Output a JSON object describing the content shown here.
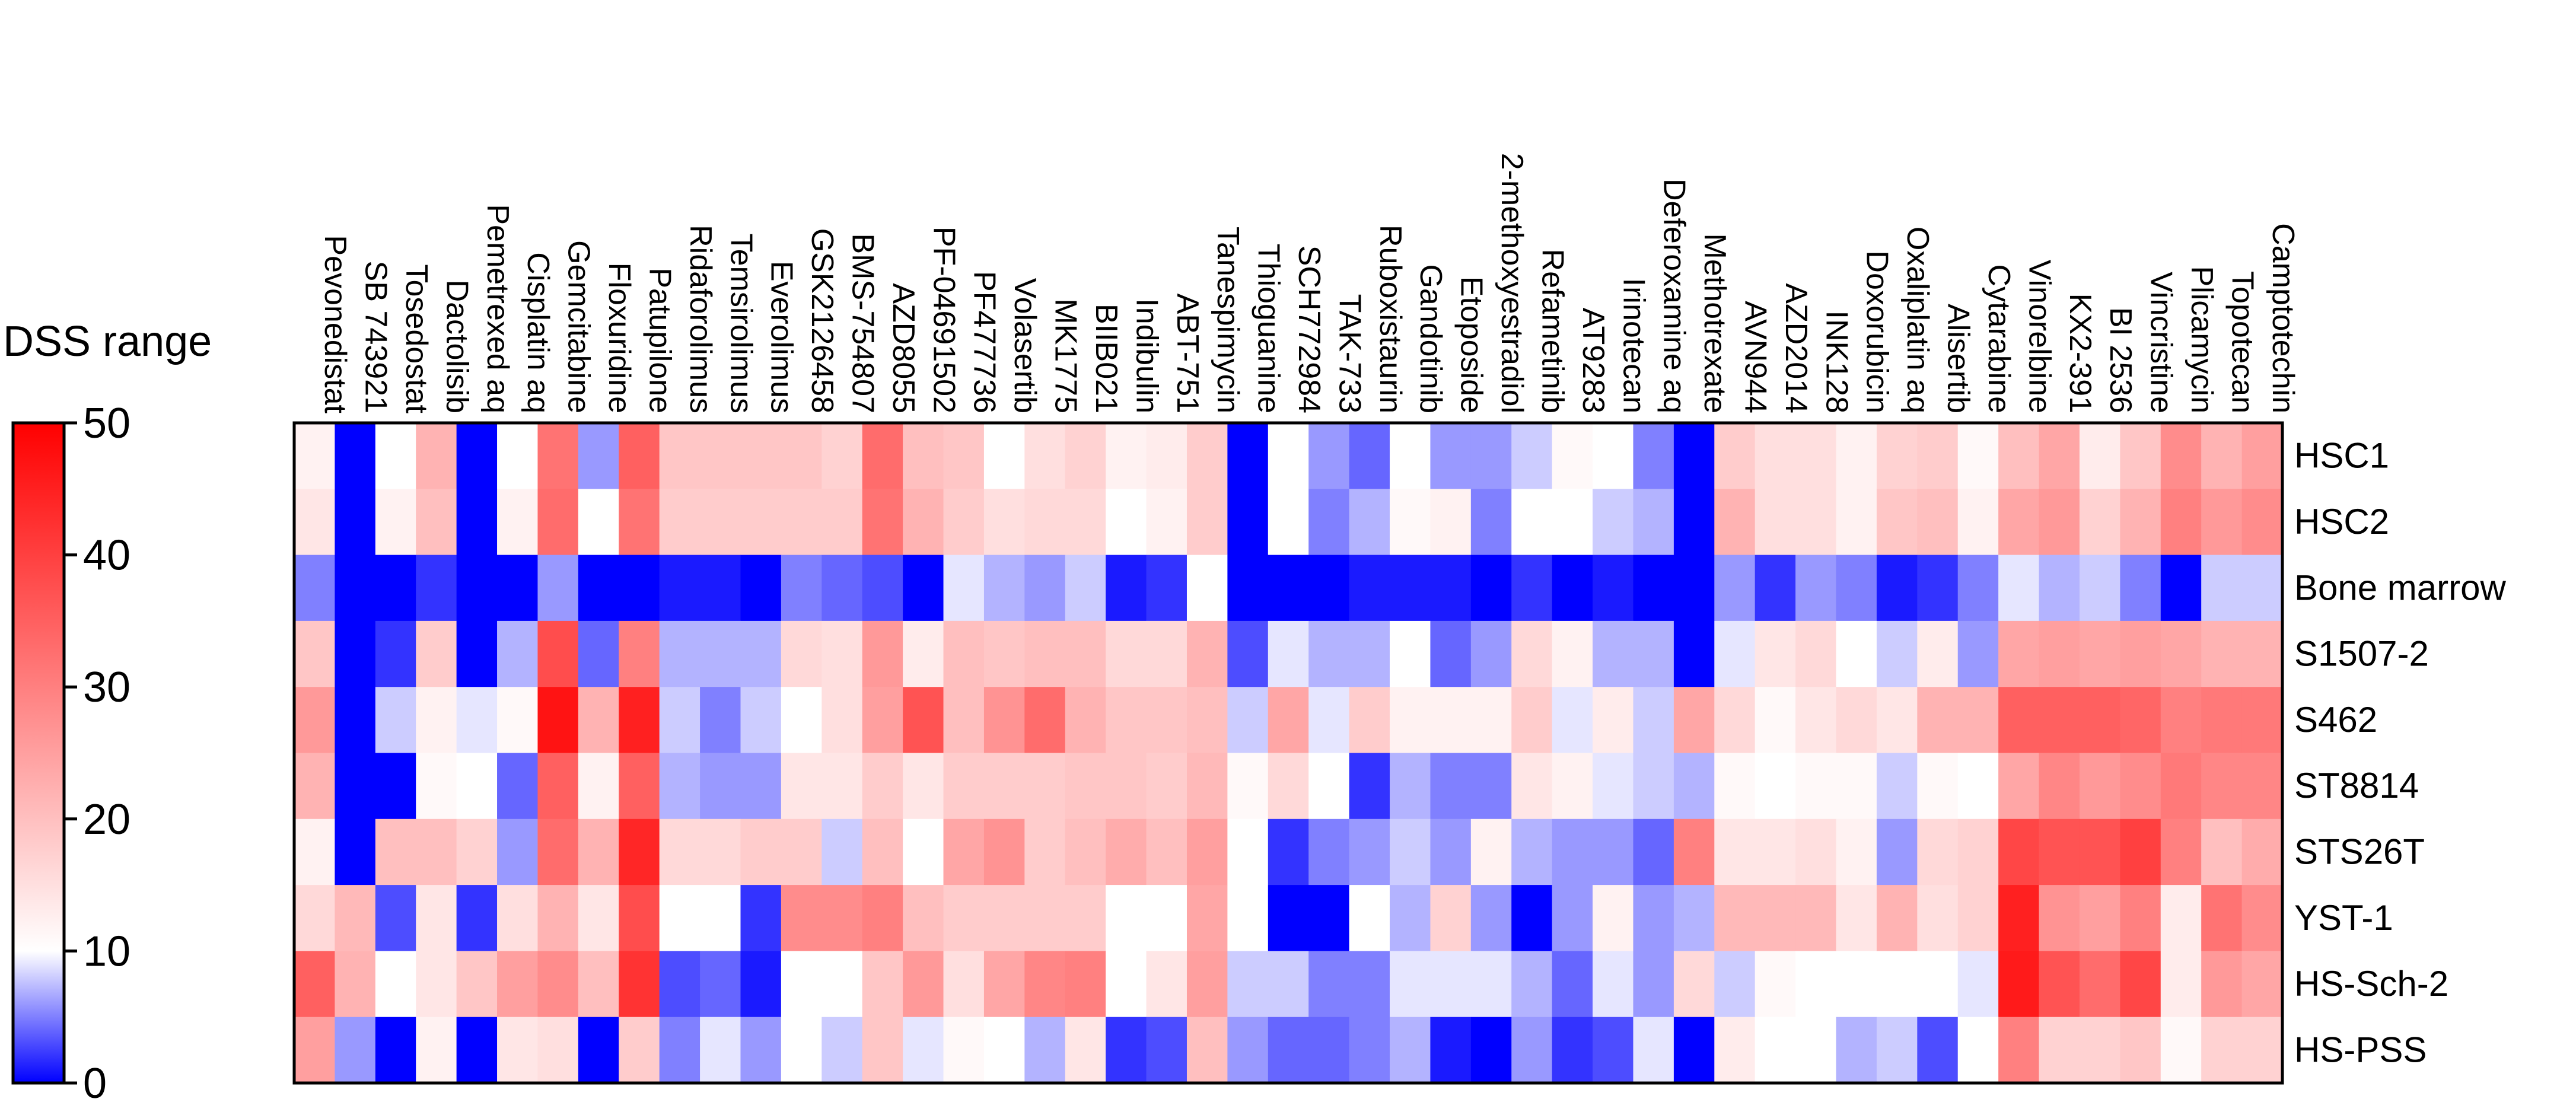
{
  "chart_data": {
    "type": "heatmap",
    "columns": [
      "Pevonedistat",
      "SB 743921",
      "Tosedostat",
      "Dactolisib",
      "Pemetrexed aq",
      "Cisplatin aq",
      "Gemcitabine",
      "Floxuridine",
      "Patupilone",
      "Ridaforolimus",
      "Temsirolimus",
      "Everolimus",
      "GSK2126458",
      "BMS-754807",
      "AZD8055",
      "PF-04691502",
      "PF477736",
      "Volasertib",
      "MK1775",
      "BIIB021",
      "Indibulin",
      "ABT-751",
      "Tanespimycin",
      "Thioguanine",
      "SCH772984",
      "TAK-733",
      "Ruboxistaurin",
      "Gandotinib",
      "Etoposide",
      "2-methoxyestradiol",
      "Refametinib",
      "AT9283",
      "Irinotecan",
      "Deferoxamine aq",
      "Methotrexate",
      "AVN944",
      "AZD2014",
      "INK128",
      "Doxorubicin",
      "Oxaliplatin aq",
      "Alisertib",
      "Cytarabine",
      "Vinorelbine",
      "KX2-391",
      "BI 2536",
      "Vincristine",
      "Plicamycin",
      "Topotecan",
      "Camptotechin"
    ],
    "rows": [
      "HSC1",
      "HSC2",
      "Bone marrow",
      "S1507-2",
      "S462",
      "ST8814",
      "STS26T",
      "YST-1",
      "HS-Sch-2",
      "HS-PSS"
    ],
    "values": [
      [
        12,
        0,
        10,
        22,
        0,
        10,
        32,
        6,
        35,
        19,
        19,
        19,
        19,
        17,
        33,
        20,
        19,
        10,
        15,
        17,
        12,
        13,
        18,
        0,
        10,
        6,
        4,
        10,
        6,
        6,
        8,
        11,
        10,
        5,
        0,
        18,
        15,
        15,
        12,
        17,
        18,
        11,
        20,
        24,
        13,
        19,
        28,
        22,
        25
      ],
      [
        14,
        0,
        12,
        20,
        0,
        12,
        33,
        10,
        32,
        18,
        18,
        18,
        18,
        18,
        32,
        22,
        18,
        15,
        16,
        16,
        10,
        12,
        18,
        0,
        10,
        5,
        7,
        11,
        12,
        5,
        10,
        10,
        8,
        7,
        0,
        22,
        15,
        15,
        12,
        19,
        20,
        12,
        24,
        26,
        17,
        22,
        30,
        26,
        28
      ],
      [
        5,
        0,
        0,
        2,
        0,
        0,
        6,
        0,
        0,
        1,
        1,
        0,
        5,
        4,
        3,
        0,
        9,
        7,
        6,
        8,
        1,
        2,
        10,
        0,
        0,
        0,
        1,
        1,
        1,
        0,
        2,
        0,
        1,
        0,
        0,
        6,
        2,
        6,
        5,
        1,
        2,
        5,
        9,
        7,
        8,
        5,
        0,
        8,
        8
      ],
      [
        19,
        0,
        2,
        18,
        0,
        7,
        38,
        4,
        30,
        7,
        7,
        7,
        16,
        15,
        26,
        13,
        20,
        19,
        20,
        20,
        16,
        16,
        22,
        3,
        9,
        7,
        7,
        10,
        4,
        6,
        16,
        12,
        7,
        7,
        0,
        9,
        14,
        16,
        10,
        8,
        13,
        6,
        24,
        25,
        24,
        25,
        24,
        22,
        22
      ],
      [
        26,
        0,
        8,
        12,
        9,
        11,
        47,
        22,
        45,
        8,
        5,
        8,
        10,
        15,
        25,
        37,
        20,
        27,
        33,
        22,
        19,
        19,
        20,
        8,
        24,
        9,
        18,
        12,
        12,
        12,
        18,
        9,
        13,
        8,
        24,
        16,
        11,
        14,
        16,
        14,
        22,
        22,
        35,
        35,
        35,
        34,
        30,
        31,
        31
      ],
      [
        22,
        0,
        0,
        11,
        10,
        4,
        35,
        12,
        35,
        7,
        6,
        6,
        14,
        14,
        18,
        14,
        18,
        18,
        18,
        19,
        19,
        18,
        21,
        11,
        16,
        10,
        2,
        7,
        5,
        5,
        14,
        12,
        9,
        8,
        7,
        11,
        10,
        11,
        11,
        8,
        11,
        10,
        24,
        29,
        26,
        28,
        31,
        29,
        29
      ],
      [
        12,
        0,
        20,
        20,
        17,
        6,
        33,
        22,
        44,
        16,
        16,
        18,
        18,
        8,
        20,
        10,
        24,
        27,
        18,
        20,
        23,
        20,
        25,
        10,
        2,
        5,
        6,
        8,
        6,
        12,
        7,
        6,
        6,
        4,
        30,
        14,
        14,
        15,
        12,
        6,
        16,
        17,
        39,
        37,
        37,
        40,
        30,
        20,
        23
      ],
      [
        16,
        21,
        3,
        14,
        2,
        15,
        22,
        14,
        38,
        10,
        10,
        2,
        28,
        28,
        30,
        20,
        18,
        18,
        18,
        18,
        10,
        10,
        24,
        10,
        0,
        0,
        10,
        7,
        17,
        6,
        0,
        6,
        12,
        6,
        7,
        21,
        21,
        21,
        14,
        22,
        15,
        17,
        45,
        27,
        25,
        30,
        13,
        32,
        28
      ],
      [
        35,
        22,
        10,
        14,
        19,
        25,
        28,
        20,
        42,
        3,
        4,
        1,
        10,
        10,
        19,
        26,
        15,
        24,
        29,
        30,
        10,
        14,
        25,
        8,
        8,
        5,
        5,
        9,
        9,
        9,
        7,
        4,
        9,
        6,
        16,
        8,
        11,
        10,
        10,
        10,
        10,
        9,
        46,
        37,
        33,
        39,
        13,
        26,
        24
      ],
      [
        25,
        6,
        0,
        12,
        0,
        14,
        15,
        0,
        18,
        5,
        9,
        6,
        10,
        8,
        19,
        9,
        11,
        10,
        7,
        14,
        2,
        3,
        20,
        6,
        4,
        4,
        5,
        7,
        1,
        0,
        6,
        2,
        3,
        9,
        0,
        13,
        10,
        10,
        7,
        8,
        3,
        10,
        30,
        17,
        17,
        19,
        11,
        17,
        17
      ]
    ],
    "scale": {
      "min": 0,
      "max": 50,
      "colors": {
        "low": "#0000ff",
        "mid": "#ffffff",
        "high": "#ff0000"
      },
      "mid_value": 10
    },
    "colorbar": {
      "title": "DSS range",
      "ticks": [
        "0",
        "10",
        "20",
        "30",
        "40",
        "50"
      ]
    }
  }
}
